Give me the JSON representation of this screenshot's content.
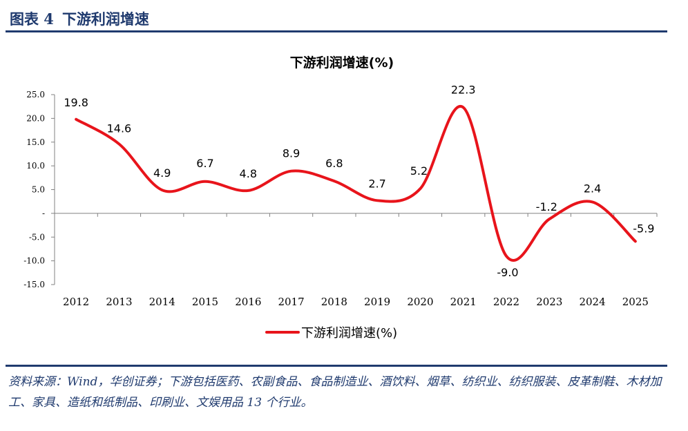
{
  "figure": {
    "number": "图表 4",
    "title": "下游利润增速"
  },
  "source_note": "资料来源：Wind，华创证券；下游包括医药、农副食品、食品制造业、酒饮料、烟草、纺织业、纺织服装、皮革制鞋、木材加工、家具、造纸和纸制品、印刷业、文娱用品 13 个行业。",
  "chart_data": {
    "type": "line",
    "title": "下游利润增速(%)",
    "xlabel": "",
    "ylabel": "",
    "categories": [
      "2012",
      "2013",
      "2014",
      "2015",
      "2016",
      "2017",
      "2018",
      "2019",
      "2020",
      "2021",
      "2022",
      "2023",
      "2024",
      "2025"
    ],
    "series": [
      {
        "name": "下游利润增速(%)",
        "values": [
          19.8,
          14.6,
          4.9,
          6.7,
          4.8,
          8.9,
          6.8,
          2.7,
          5.2,
          22.3,
          -9.0,
          -1.2,
          2.4,
          -5.9
        ],
        "color": "#e8141b"
      }
    ],
    "data_labels": [
      "19.8",
      "14.6",
      "4.9",
      "6.7",
      "4.8",
      "8.9",
      "6.8",
      "2.7",
      "5.2",
      "22.3",
      "-9.0",
      "-1.2",
      "2.4",
      "-5.9"
    ],
    "ylim": [
      -15,
      25
    ],
    "yticks": [
      {
        "value": 25,
        "label": "25.0"
      },
      {
        "value": 20,
        "label": "20.0"
      },
      {
        "value": 15,
        "label": "15.0"
      },
      {
        "value": 10,
        "label": "10.0"
      },
      {
        "value": 5,
        "label": "5.0"
      },
      {
        "value": 0,
        "label": "-"
      },
      {
        "value": -5,
        "label": "-5.0"
      },
      {
        "value": -10,
        "label": "-10.0"
      },
      {
        "value": -15,
        "label": "-15.0"
      }
    ],
    "grid": false,
    "legend_position": "bottom-center",
    "smooth": true
  }
}
